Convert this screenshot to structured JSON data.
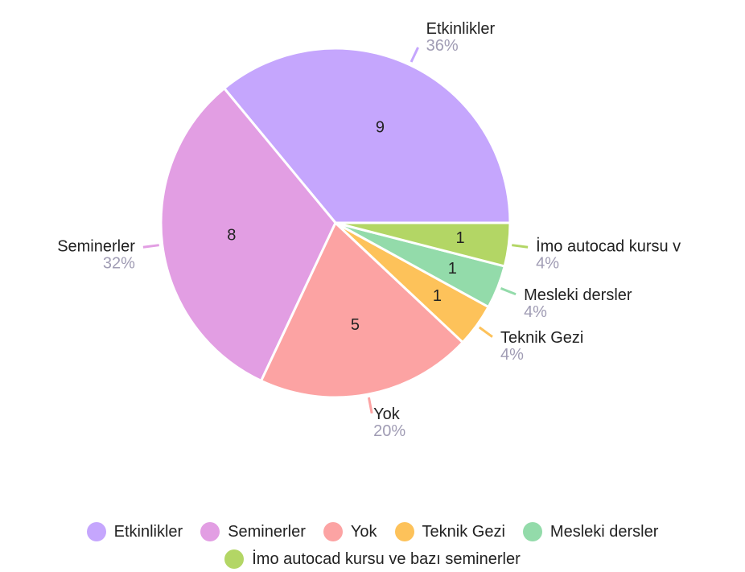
{
  "chart_data": {
    "type": "pie",
    "categories": [
      "Etkinlikler",
      "Seminerler",
      "Yok",
      "Teknik Gezi",
      "Mesleki dersler",
      "İmo autocad kursu ve bazı seminerler"
    ],
    "slice_labels": [
      "Etkinlikler",
      "Seminerler",
      "Yok",
      "Teknik Gezi",
      "Mesleki dersler",
      "İmo autocad kursu v"
    ],
    "values": [
      9,
      8,
      5,
      1,
      1,
      1
    ],
    "percent_labels": [
      "36%",
      "32%",
      "20%",
      "4%",
      "4%",
      "4%"
    ],
    "colors": [
      "#c5a6fd",
      "#e29ee3",
      "#fca3a3",
      "#fdc25a",
      "#93dbaa",
      "#b3d665"
    ],
    "legend": "bottom"
  }
}
